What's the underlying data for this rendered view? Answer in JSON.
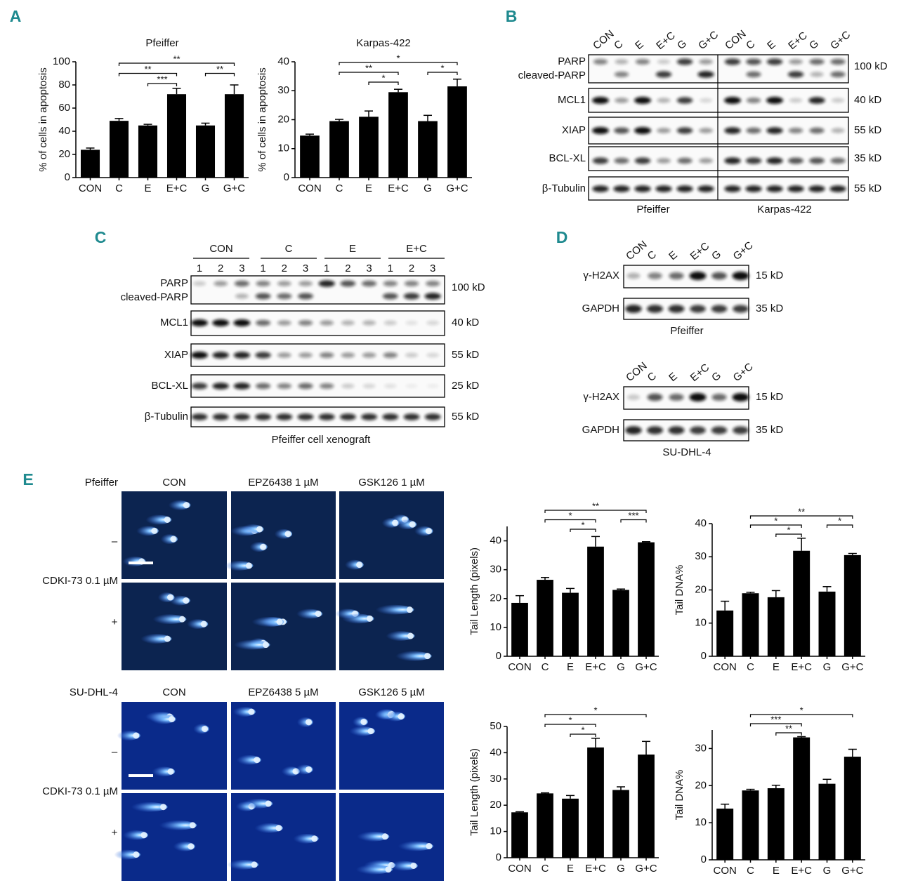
{
  "panel_labels": [
    "A",
    "B",
    "C",
    "D",
    "E"
  ],
  "chart_data": [
    {
      "type": "bar",
      "title": "Pfeiffer",
      "y_label": "% of cells in apoptosis",
      "categories": [
        "CON",
        "C",
        "E",
        "E+C",
        "G",
        "G+C"
      ],
      "values": [
        24,
        49,
        45,
        72,
        45,
        72
      ],
      "errors": [
        1.5,
        2,
        1,
        5,
        2,
        8
      ],
      "ylim": [
        0,
        100
      ],
      "yticks": [
        0,
        20,
        40,
        60,
        80,
        100
      ],
      "color": "#000000",
      "significance": [
        {
          "between": [
            "C",
            "G+C"
          ],
          "label": "**"
        },
        {
          "between": [
            "C",
            "E+C"
          ],
          "label": "**"
        },
        {
          "between": [
            "E",
            "E+C"
          ],
          "label": "***"
        },
        {
          "between": [
            "G",
            "G+C"
          ],
          "label": "**"
        }
      ]
    },
    {
      "type": "bar",
      "title": "Karpas-422",
      "y_label": "% of cells in apoptosis",
      "categories": [
        "CON",
        "C",
        "E",
        "E+C",
        "G",
        "G+C"
      ],
      "values": [
        14.5,
        19.5,
        21,
        29.5,
        19.5,
        31.5
      ],
      "errors": [
        0.5,
        0.6,
        2,
        1,
        2,
        2.5
      ],
      "ylim": [
        0,
        40
      ],
      "yticks": [
        0,
        10,
        20,
        30,
        40
      ],
      "color": "#000000",
      "significance": [
        {
          "between": [
            "C",
            "G+C"
          ],
          "label": "*"
        },
        {
          "between": [
            "C",
            "E+C"
          ],
          "label": "**"
        },
        {
          "between": [
            "E",
            "E+C"
          ],
          "label": "*"
        },
        {
          "between": [
            "G",
            "G+C"
          ],
          "label": "*"
        }
      ]
    },
    {
      "type": "bar",
      "y_label": "Tail Length (pixels)",
      "categories": [
        "CON",
        "C",
        "E",
        "E+C",
        "G",
        "G+C"
      ],
      "values": [
        18.5,
        26.5,
        22,
        38,
        23,
        39.5
      ],
      "errors": [
        2.5,
        0.8,
        1.5,
        3.5,
        0.3,
        0.2
      ],
      "ylim": [
        0,
        45
      ],
      "yticks": [
        0,
        10,
        20,
        30,
        40
      ],
      "color": "#000000",
      "significance": [
        {
          "between": [
            "C",
            "G+C"
          ],
          "label": "**"
        },
        {
          "between": [
            "C",
            "E+C"
          ],
          "label": "*"
        },
        {
          "between": [
            "E",
            "E+C"
          ],
          "label": "*"
        },
        {
          "between": [
            "G",
            "G+C"
          ],
          "label": "***"
        }
      ]
    },
    {
      "type": "bar",
      "y_label": "Tail DNA%",
      "categories": [
        "CON",
        "C",
        "E",
        "E+C",
        "G",
        "G+C"
      ],
      "values": [
        13.8,
        19,
        17.8,
        31.8,
        19.5,
        30.5
      ],
      "errors": [
        2.8,
        0.3,
        2,
        3.8,
        1.5,
        0.5
      ],
      "ylim": [
        0,
        40
      ],
      "yticks": [
        0,
        10,
        20,
        30,
        40
      ],
      "color": "#000000",
      "significance": [
        {
          "between": [
            "C",
            "G+C"
          ],
          "label": "**"
        },
        {
          "between": [
            "C",
            "E+C"
          ],
          "label": "*"
        },
        {
          "between": [
            "E",
            "E+C"
          ],
          "label": "*"
        },
        {
          "between": [
            "G",
            "G+C"
          ],
          "label": "*"
        }
      ]
    },
    {
      "type": "bar",
      "y_label": "Tail Length (pixels)",
      "categories": [
        "CON",
        "C",
        "E",
        "E+C",
        "G",
        "G+C"
      ],
      "values": [
        17.3,
        24.5,
        22.5,
        42,
        25.8,
        39.3
      ],
      "errors": [
        0.2,
        0.2,
        1.2,
        3.5,
        1.2,
        5
      ],
      "ylim": [
        0,
        50
      ],
      "yticks": [
        0,
        10,
        20,
        30,
        40,
        50
      ],
      "color": "#000000",
      "significance": [
        {
          "between": [
            "C",
            "G+C"
          ],
          "label": "*"
        },
        {
          "between": [
            "C",
            "E+C"
          ],
          "label": "*"
        },
        {
          "between": [
            "E",
            "E+C"
          ],
          "label": "*"
        }
      ]
    },
    {
      "type": "bar",
      "y_label": "Tail DNA%",
      "categories": [
        "CON",
        "C",
        "E",
        "E+C",
        "G",
        "G+C"
      ],
      "values": [
        13.8,
        18.7,
        19.3,
        33,
        20.5,
        27.8
      ],
      "errors": [
        1.2,
        0.3,
        0.8,
        0.2,
        1.2,
        2
      ],
      "ylim": [
        0,
        35
      ],
      "yticks": [
        0,
        10,
        20,
        30
      ],
      "color": "#000000",
      "significance": [
        {
          "between": [
            "C",
            "G+C"
          ],
          "label": "*"
        },
        {
          "between": [
            "C",
            "E+C"
          ],
          "label": "***"
        },
        {
          "between": [
            "E",
            "E+C"
          ],
          "label": "**"
        }
      ]
    }
  ],
  "blot_b": {
    "lanes": [
      "CON",
      "C",
      "E",
      "E+C",
      "G",
      "G+C"
    ],
    "proteins": [
      "PARP",
      "cleaved-PARP",
      "MCL1",
      "XIAP",
      "BCL-XL",
      "β-Tubulin"
    ],
    "sizes": [
      "100 kD",
      "40 kD",
      "55 kD",
      "35 kD",
      "55 kD"
    ],
    "cell_lines": [
      "Pfeiffer",
      "Karpas-422"
    ]
  },
  "blot_c": {
    "groups": [
      "CON",
      "C",
      "E",
      "E+C"
    ],
    "replicates": [
      "1",
      "2",
      "3"
    ],
    "proteins": [
      "PARP",
      "cleaved-PARP",
      "MCL1",
      "XIAP",
      "BCL-XL",
      "β-Tubulin"
    ],
    "sizes": [
      "100 kD",
      "40 kD",
      "55 kD",
      "25 kD",
      "55 kD"
    ],
    "caption": "Pfeiffer cell xenograft"
  },
  "blot_d": [
    {
      "lanes": [
        "CON",
        "C",
        "E",
        "E+C",
        "G",
        "G+C"
      ],
      "proteins": [
        "γ-H2AX",
        "GAPDH"
      ],
      "sizes": [
        "15 kD",
        "35 kD"
      ],
      "caption": "Pfeiffer"
    },
    {
      "lanes": [
        "CON",
        "C",
        "E",
        "E+C",
        "G",
        "G+C"
      ],
      "proteins": [
        "γ-H2AX",
        "GAPDH"
      ],
      "sizes": [
        "15 kD",
        "35 kD"
      ],
      "caption": "SU-DHL-4"
    }
  ],
  "comet": {
    "blocks": [
      {
        "cell_line": "Pfeiffer",
        "columns": [
          "CON",
          "EPZ6438 1 µM",
          "GSK126 1 µM"
        ]
      },
      {
        "cell_line": "SU-DHL-4",
        "columns": [
          "CON",
          "EPZ6438 5 µM",
          "GSK126 5 µM"
        ]
      }
    ],
    "rows": [
      "–",
      "+"
    ],
    "treatment": "CDKI-73 0.1 µM"
  }
}
